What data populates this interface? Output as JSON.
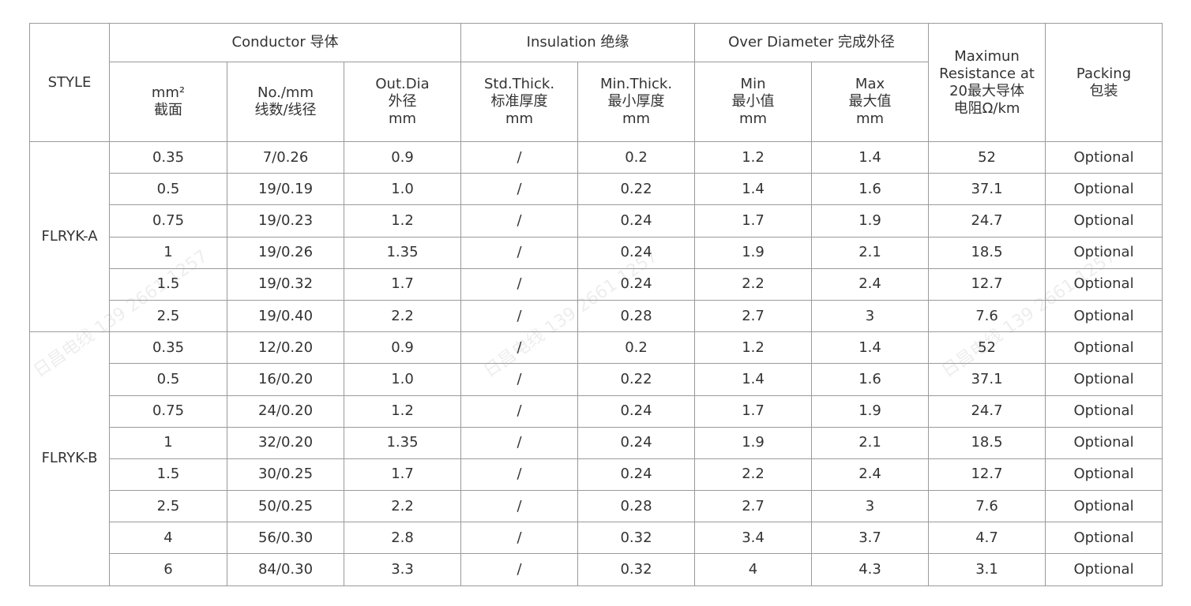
{
  "watermark": "日昌电线 139 2661 1257",
  "header": {
    "style": "STYLE",
    "conductor": "Conductor 导体",
    "insulation": "Insulation 绝缘",
    "over_diameter": "Over Diameter 完成外径",
    "resistance": "Maximun\nResistance at\n20最大导体\n电阻Ω/km",
    "packing": "Packing\n包装",
    "mm2": "mm²\n截面",
    "no_mm": "No./mm\n线数/线径",
    "out_dia": "Out.Dia\n外径\nmm",
    "std_thick": "Std.Thick.\n标准厚度\nmm",
    "min_thick": "Min.Thick.\n最小厚度\nmm",
    "min": "Min\n最小值\nmm",
    "max": "Max\n最大值\nmm"
  },
  "groups": [
    {
      "style": "FLRYK-A",
      "rows": [
        [
          "0.35",
          "7/0.26",
          "0.9",
          "/",
          "0.2",
          "1.2",
          "1.4",
          "52",
          "Optional"
        ],
        [
          "0.5",
          "19/0.19",
          "1.0",
          "/",
          "0.22",
          "1.4",
          "1.6",
          "37.1",
          "Optional"
        ],
        [
          "0.75",
          "19/0.23",
          "1.2",
          "/",
          "0.24",
          "1.7",
          "1.9",
          "24.7",
          "Optional"
        ],
        [
          "1",
          "19/0.26",
          "1.35",
          "/",
          "0.24",
          "1.9",
          "2.1",
          "18.5",
          "Optional"
        ],
        [
          "1.5",
          "19/0.32",
          "1.7",
          "/",
          "0.24",
          "2.2",
          "2.4",
          "12.7",
          "Optional"
        ],
        [
          "2.5",
          "19/0.40",
          "2.2",
          "/",
          "0.28",
          "2.7",
          "3",
          "7.6",
          "Optional"
        ]
      ]
    },
    {
      "style": "FLRYK-B",
      "rows": [
        [
          "0.35",
          "12/0.20",
          "0.9",
          "/",
          "0.2",
          "1.2",
          "1.4",
          "52",
          "Optional"
        ],
        [
          "0.5",
          "16/0.20",
          "1.0",
          "/",
          "0.22",
          "1.4",
          "1.6",
          "37.1",
          "Optional"
        ],
        [
          "0.75",
          "24/0.20",
          "1.2",
          "/",
          "0.24",
          "1.7",
          "1.9",
          "24.7",
          "Optional"
        ],
        [
          "1",
          "32/0.20",
          "1.35",
          "/",
          "0.24",
          "1.9",
          "2.1",
          "18.5",
          "Optional"
        ],
        [
          "1.5",
          "30/0.25",
          "1.7",
          "/",
          "0.24",
          "2.2",
          "2.4",
          "12.7",
          "Optional"
        ],
        [
          "2.5",
          "50/0.25",
          "2.2",
          "/",
          "0.28",
          "2.7",
          "3",
          "7.6",
          "Optional"
        ],
        [
          "4",
          "56/0.30",
          "2.8",
          "/",
          "0.32",
          "3.4",
          "3.7",
          "4.7",
          "Optional"
        ],
        [
          "6",
          "84/0.30",
          "3.3",
          "/",
          "0.32",
          "4",
          "4.3",
          "3.1",
          "Optional"
        ]
      ]
    }
  ]
}
